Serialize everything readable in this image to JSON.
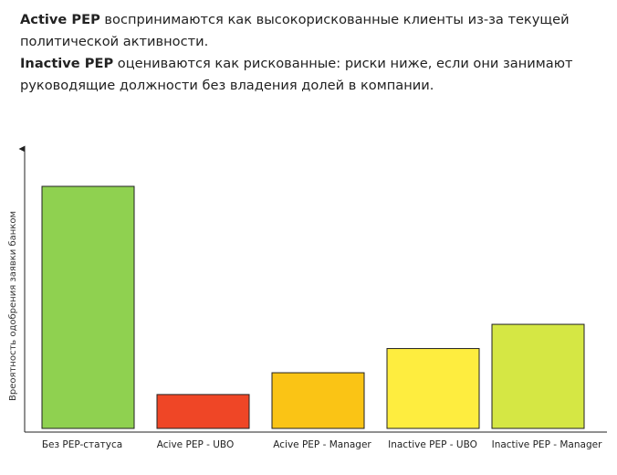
{
  "intro": {
    "line1_bold": "Active PEP",
    "line1_text": " воспринимаются как высокорискованные клиенты из-за текущей политической активности.",
    "line2_bold": "Inactive PEP",
    "line2_text": " оцениваются как рискованные: риски ниже, если они занимают руководящие должности без владения долей в компании."
  },
  "chart_data": {
    "type": "bar",
    "title": "",
    "xlabel": "",
    "ylabel": "Вреоятность одобрения заявки банком",
    "categories": [
      "Без PEP-статуса",
      "Acive PEP - UBO",
      "Acive PEP - Manager",
      "Inactive PEP - UBO",
      "Inactive PEP - Manager"
    ],
    "values": [
      100,
      14,
      23,
      33,
      43
    ],
    "colors": [
      "#8fd150",
      "#ef4626",
      "#fac415",
      "#feed3f",
      "#d5e744"
    ],
    "ylim": [
      0,
      100
    ],
    "grid": false,
    "axis_ticks_shown": false
  }
}
